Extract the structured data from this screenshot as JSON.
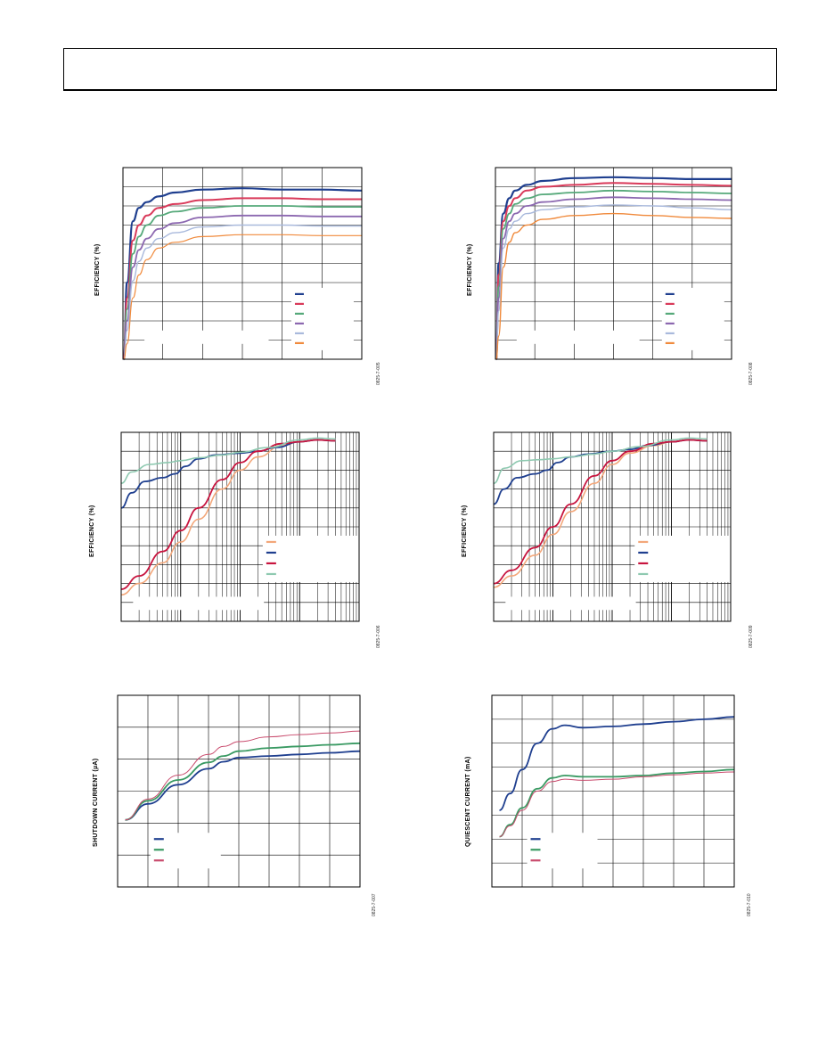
{
  "page": {
    "header": {
      "text": ""
    }
  },
  "chart_data": [
    {
      "id": "chart1",
      "type": "line",
      "title": "",
      "xlabel": "",
      "ylabel": "EFFICIENCY (%)",
      "figure_number": "0825-7-005",
      "grid": true,
      "xscale": "linear",
      "xlim": [
        0,
        6
      ],
      "ylim": [
        0,
        10
      ],
      "x_divisions": 6,
      "y_divisions": 10,
      "legend": "right",
      "series": [
        {
          "color": "#1f3f8f",
          "width": 2.2,
          "x": [
            0.02,
            0.1,
            0.25,
            0.4,
            0.6,
            0.9,
            1.3,
            2,
            3,
            4,
            5,
            6
          ],
          "y": [
            0,
            4,
            7.2,
            7.9,
            8.2,
            8.5,
            8.7,
            8.85,
            8.92,
            8.85,
            8.85,
            8.8
          ]
        },
        {
          "color": "#d93a5a",
          "width": 2.0,
          "x": [
            0.02,
            0.1,
            0.25,
            0.4,
            0.6,
            0.9,
            1.3,
            2,
            3,
            4,
            5,
            6
          ],
          "y": [
            0,
            3.2,
            6.2,
            7.0,
            7.5,
            7.9,
            8.1,
            8.3,
            8.4,
            8.4,
            8.35,
            8.35
          ]
        },
        {
          "color": "#56a97a",
          "width": 1.8,
          "x": [
            0.02,
            0.1,
            0.25,
            0.4,
            0.6,
            0.9,
            1.3,
            2,
            3,
            4,
            5,
            6
          ],
          "y": [
            0,
            2.6,
            5.5,
            6.4,
            7.0,
            7.5,
            7.7,
            7.9,
            8.0,
            8.0,
            7.95,
            7.95
          ]
        },
        {
          "color": "#8c68b0",
          "width": 1.8,
          "x": [
            0.02,
            0.1,
            0.25,
            0.4,
            0.6,
            0.9,
            1.3,
            2,
            3,
            4,
            5,
            6
          ],
          "y": [
            0,
            2.0,
            4.8,
            5.7,
            6.3,
            6.8,
            7.1,
            7.4,
            7.5,
            7.5,
            7.45,
            7.45
          ]
        },
        {
          "color": "#a9b9dc",
          "width": 1.4,
          "x": [
            0.02,
            0.1,
            0.25,
            0.4,
            0.6,
            0.9,
            1.3,
            2,
            3,
            4,
            5,
            6
          ],
          "y": [
            0,
            1.5,
            4.1,
            5.1,
            5.8,
            6.3,
            6.6,
            6.9,
            7.0,
            7.0,
            6.95,
            6.95
          ]
        },
        {
          "color": "#f08a3c",
          "width": 1.2,
          "x": [
            0.02,
            0.1,
            0.25,
            0.4,
            0.6,
            0.9,
            1.3,
            2,
            3,
            4,
            5,
            6
          ],
          "y": [
            0,
            0.8,
            3.2,
            4.4,
            5.2,
            5.8,
            6.1,
            6.4,
            6.5,
            6.5,
            6.45,
            6.45
          ]
        }
      ]
    },
    {
      "id": "chart2",
      "type": "line",
      "title": "",
      "xlabel": "",
      "ylabel": "EFFICIENCY (%)",
      "figure_number": "0825-7-008",
      "grid": true,
      "xscale": "linear",
      "xlim": [
        0,
        6
      ],
      "ylim": [
        0,
        10
      ],
      "x_divisions": 6,
      "y_divisions": 10,
      "legend": "right",
      "series": [
        {
          "color": "#1f3f8f",
          "width": 2.2,
          "x": [
            0.02,
            0.08,
            0.2,
            0.35,
            0.5,
            0.8,
            1.2,
            2,
            3,
            4,
            5,
            6
          ],
          "y": [
            0,
            5,
            7.6,
            8.4,
            8.8,
            9.1,
            9.3,
            9.45,
            9.5,
            9.45,
            9.4,
            9.4
          ]
        },
        {
          "color": "#d93a5a",
          "width": 2.0,
          "x": [
            0.02,
            0.08,
            0.2,
            0.35,
            0.5,
            0.8,
            1.2,
            2,
            3,
            4,
            5,
            6
          ],
          "y": [
            0,
            4.4,
            7.2,
            8.0,
            8.4,
            8.8,
            9.0,
            9.1,
            9.2,
            9.15,
            9.1,
            9.05
          ]
        },
        {
          "color": "#56a97a",
          "width": 1.8,
          "x": [
            0.02,
            0.08,
            0.2,
            0.35,
            0.5,
            0.8,
            1.2,
            2,
            3,
            4,
            5,
            6
          ],
          "y": [
            0,
            3.8,
            6.8,
            7.6,
            8.1,
            8.4,
            8.6,
            8.7,
            8.8,
            8.75,
            8.7,
            8.65
          ]
        },
        {
          "color": "#8c68b0",
          "width": 1.8,
          "x": [
            0.02,
            0.08,
            0.2,
            0.35,
            0.5,
            0.8,
            1.2,
            2,
            3,
            4,
            5,
            6
          ],
          "y": [
            0,
            3.2,
            6.3,
            7.2,
            7.6,
            8.0,
            8.2,
            8.35,
            8.45,
            8.4,
            8.35,
            8.3
          ]
        },
        {
          "color": "#a9b9dc",
          "width": 1.4,
          "x": [
            0.02,
            0.08,
            0.2,
            0.35,
            0.5,
            0.8,
            1.2,
            2,
            3,
            4,
            5,
            6
          ],
          "y": [
            0,
            2.5,
            5.8,
            6.8,
            7.2,
            7.6,
            7.8,
            7.95,
            8.05,
            8.0,
            7.9,
            7.8
          ]
        },
        {
          "color": "#f08a3c",
          "width": 1.4,
          "x": [
            0.02,
            0.08,
            0.2,
            0.35,
            0.5,
            0.8,
            1.2,
            2,
            3,
            4,
            5,
            6
          ],
          "y": [
            0,
            1.2,
            4.8,
            6.1,
            6.6,
            7.0,
            7.3,
            7.5,
            7.6,
            7.5,
            7.4,
            7.35
          ]
        }
      ]
    },
    {
      "id": "chart3",
      "type": "line",
      "title": "",
      "xlabel": "",
      "ylabel": "EFFICIENCY (%)",
      "figure_number": "0825-7-006",
      "grid": true,
      "xscale": "log",
      "xlim": [
        0.1,
        1000
      ],
      "ylim": [
        0,
        10
      ],
      "y_divisions": 10,
      "legend": "right",
      "series": [
        {
          "color": "#f3a77a",
          "width": 1.6,
          "x": [
            0.1,
            0.2,
            0.5,
            1,
            2,
            5,
            10,
            20,
            50,
            100,
            200,
            400
          ],
          "y": [
            1.4,
            2.0,
            3.1,
            4.2,
            5.4,
            7.0,
            8.0,
            8.7,
            9.3,
            9.5,
            9.6,
            9.55
          ]
        },
        {
          "color": "#1f3f8f",
          "width": 1.8,
          "x": [
            0.1,
            0.15,
            0.25,
            0.5,
            0.8,
            1.2,
            2,
            4,
            10,
            20,
            40,
            100,
            200,
            400
          ],
          "y": [
            6.0,
            6.8,
            7.4,
            7.6,
            7.8,
            8.2,
            8.6,
            8.8,
            8.9,
            9.0,
            9.2,
            9.5,
            9.6,
            9.55
          ]
        },
        {
          "color": "#c8153f",
          "width": 1.8,
          "x": [
            0.1,
            0.2,
            0.5,
            1,
            2,
            5,
            10,
            20,
            50,
            100,
            200,
            400
          ],
          "y": [
            1.7,
            2.4,
            3.7,
            4.8,
            6.0,
            7.5,
            8.4,
            9.0,
            9.4,
            9.5,
            9.6,
            9.55
          ]
        },
        {
          "color": "#8ec9b0",
          "width": 1.6,
          "x": [
            0.1,
            0.15,
            0.3,
            0.6,
            1,
            2,
            5,
            10,
            30,
            100,
            200,
            400
          ],
          "y": [
            7.3,
            7.9,
            8.3,
            8.4,
            8.5,
            8.65,
            8.8,
            8.95,
            9.2,
            9.6,
            9.7,
            9.65
          ]
        }
      ]
    },
    {
      "id": "chart4",
      "type": "line",
      "title": "",
      "xlabel": "",
      "ylabel": "EFFICIENCY (%)",
      "figure_number": "0825-7-009",
      "grid": true,
      "xscale": "log",
      "xlim": [
        0.1,
        1000
      ],
      "ylim": [
        0,
        10
      ],
      "y_divisions": 10,
      "legend": "right",
      "series": [
        {
          "color": "#f3a77a",
          "width": 1.6,
          "x": [
            0.1,
            0.2,
            0.5,
            1,
            2,
            5,
            10,
            20,
            50,
            100,
            200,
            400
          ],
          "y": [
            1.8,
            2.4,
            3.5,
            4.6,
            5.8,
            7.3,
            8.3,
            8.9,
            9.3,
            9.5,
            9.6,
            9.55
          ]
        },
        {
          "color": "#1f3f8f",
          "width": 1.8,
          "x": [
            0.1,
            0.15,
            0.25,
            0.5,
            0.8,
            1.2,
            2,
            4,
            10,
            20,
            40,
            100,
            200,
            400
          ],
          "y": [
            6.2,
            7.0,
            7.6,
            7.8,
            8.0,
            8.4,
            8.7,
            8.85,
            9.0,
            9.1,
            9.3,
            9.5,
            9.6,
            9.55
          ]
        },
        {
          "color": "#c8153f",
          "width": 1.8,
          "x": [
            0.1,
            0.2,
            0.5,
            1,
            2,
            5,
            10,
            20,
            50,
            100,
            200,
            400
          ],
          "y": [
            2.0,
            2.7,
            3.9,
            5.0,
            6.2,
            7.7,
            8.5,
            9.0,
            9.4,
            9.5,
            9.6,
            9.55
          ]
        },
        {
          "color": "#8ec9b0",
          "width": 1.6,
          "x": [
            0.1,
            0.15,
            0.3,
            0.6,
            1,
            2,
            5,
            10,
            30,
            100,
            200,
            400
          ],
          "y": [
            7.3,
            8.1,
            8.5,
            8.55,
            8.6,
            8.7,
            8.85,
            9.0,
            9.25,
            9.6,
            9.7,
            9.65
          ]
        }
      ]
    },
    {
      "id": "chart5",
      "type": "line",
      "title": "",
      "xlabel": "",
      "ylabel": "SHUTDOWN CURRENT (µA)",
      "figure_number": "0825-7-007",
      "grid": true,
      "xscale": "linear",
      "xlim": [
        0,
        8
      ],
      "ylim": [
        0,
        6
      ],
      "x_divisions": 8,
      "y_divisions": 6,
      "legend": "bottom-left",
      "series": [
        {
          "color": "#1f3f8f",
          "width": 1.8,
          "x": [
            0.25,
            1,
            2,
            3,
            3.5,
            4,
            5,
            6,
            7,
            8
          ],
          "y": [
            2.1,
            2.6,
            3.2,
            3.7,
            3.92,
            4.05,
            4.1,
            4.15,
            4.2,
            4.25
          ]
        },
        {
          "color": "#3a9a63",
          "width": 1.8,
          "x": [
            0.25,
            1,
            2,
            3,
            3.5,
            4,
            5,
            6,
            7,
            8
          ],
          "y": [
            2.1,
            2.7,
            3.35,
            3.9,
            4.1,
            4.25,
            4.35,
            4.4,
            4.45,
            4.5
          ]
        },
        {
          "color": "#c94b6d",
          "width": 1.0,
          "x": [
            0.25,
            1,
            2,
            3,
            3.5,
            4,
            5,
            6,
            7,
            8
          ],
          "y": [
            2.1,
            2.75,
            3.5,
            4.15,
            4.4,
            4.55,
            4.7,
            4.77,
            4.82,
            4.88
          ]
        }
      ]
    },
    {
      "id": "chart6",
      "type": "line",
      "title": "",
      "xlabel": "",
      "ylabel": "QUIESCENT CURRENT (mA)",
      "figure_number": "0825-7-010",
      "grid": true,
      "xscale": "linear",
      "xlim": [
        0,
        8
      ],
      "ylim": [
        0,
        8
      ],
      "x_divisions": 8,
      "y_divisions": 8,
      "legend": "bottom-left",
      "series": [
        {
          "color": "#1f3f8f",
          "width": 1.8,
          "x": [
            0.25,
            0.6,
            1,
            1.5,
            2,
            2.4,
            3,
            4,
            5,
            6,
            7,
            8
          ],
          "y": [
            3.2,
            3.9,
            4.9,
            6.0,
            6.6,
            6.75,
            6.65,
            6.7,
            6.8,
            6.9,
            7.0,
            7.1
          ]
        },
        {
          "color": "#3a9a63",
          "width": 1.8,
          "x": [
            0.25,
            0.6,
            1,
            1.5,
            2,
            2.4,
            3,
            4,
            5,
            6,
            7,
            8
          ],
          "y": [
            2.1,
            2.6,
            3.3,
            4.1,
            4.55,
            4.65,
            4.6,
            4.6,
            4.65,
            4.75,
            4.82,
            4.9
          ]
        },
        {
          "color": "#c94b6d",
          "width": 1.0,
          "x": [
            0.25,
            0.6,
            1,
            1.5,
            2,
            2.4,
            3,
            4,
            5,
            6,
            7,
            8
          ],
          "y": [
            2.1,
            2.55,
            3.2,
            4.0,
            4.4,
            4.5,
            4.45,
            4.5,
            4.6,
            4.68,
            4.75,
            4.8
          ]
        }
      ]
    }
  ]
}
